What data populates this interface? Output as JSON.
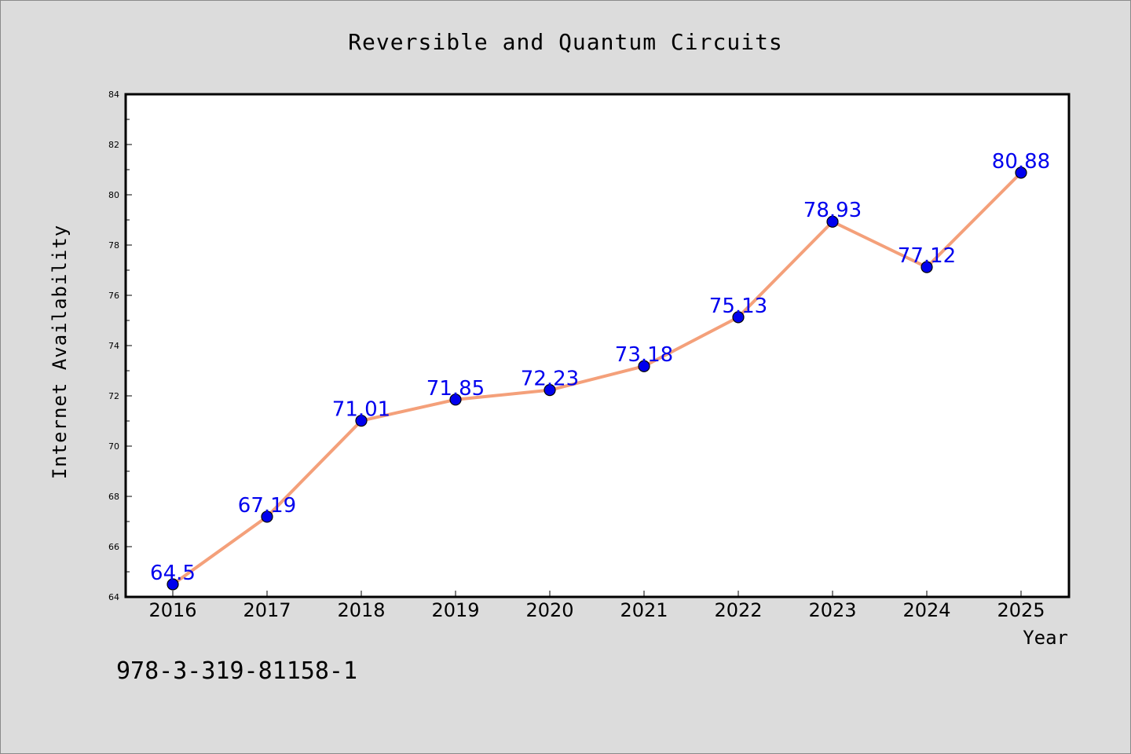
{
  "footer_text": "978-3-319-81158-1",
  "chart_data": {
    "type": "line",
    "title": "Reversible and Quantum Circuits",
    "xlabel": "Year",
    "ylabel": "Internet Availability",
    "categories": [
      "2016",
      "2017",
      "2018",
      "2019",
      "2020",
      "2021",
      "2022",
      "2023",
      "2024",
      "2025"
    ],
    "series": [
      {
        "values": [
          64.5,
          67.19,
          71.01,
          71.85,
          72.23,
          73.18,
          75.13,
          78.93,
          77.12,
          80.88
        ],
        "line_color": "#f4a07a",
        "marker_color": "#0000ee",
        "label_color": "#0000ee"
      }
    ],
    "data_labels": [
      "64.5",
      "67.19",
      "71.01",
      "71.85",
      "72.23",
      "73.18",
      "75.13",
      "78.93",
      "77.12",
      "80.88"
    ],
    "ylim": [
      64,
      84
    ],
    "yticks": [
      "64",
      "66",
      "68",
      "70",
      "72",
      "74",
      "76",
      "78",
      "80",
      "82",
      "84"
    ],
    "grid": false,
    "legend": "none"
  }
}
